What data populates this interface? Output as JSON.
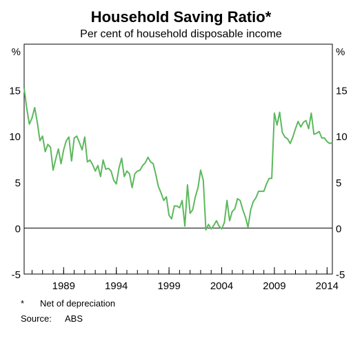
{
  "title": "Household Saving Ratio*",
  "subtitle": "Per cent of household disposable income",
  "footnote": {
    "marker": "*",
    "text": "Net of depreciation"
  },
  "source": {
    "label": "Source:",
    "text": "ABS"
  },
  "colors": {
    "line": "#5cb85c",
    "axis": "#000000",
    "zero_line": "#000000"
  },
  "chart_data": {
    "type": "line",
    "title": "Household Saving Ratio*",
    "subtitle": "Per cent of household disposable income",
    "ylabel_left": "%",
    "ylabel_right": "%",
    "xlim": [
      1985.25,
      2014.5
    ],
    "ylim": [
      -5,
      20
    ],
    "x_ticks": [
      1989,
      1994,
      1999,
      2004,
      2009,
      2014
    ],
    "y_ticks": [
      -5,
      0,
      5,
      10,
      15
    ],
    "grid": false,
    "legend": "none",
    "series": [
      {
        "values": [
          [
            1985.25,
            15.2
          ],
          [
            1985.5,
            13.0
          ],
          [
            1985.75,
            11.3
          ],
          [
            1986.0,
            12.0
          ],
          [
            1986.25,
            13.1
          ],
          [
            1986.5,
            11.5
          ],
          [
            1986.75,
            9.5
          ],
          [
            1987.0,
            10.0
          ],
          [
            1987.25,
            8.3
          ],
          [
            1987.5,
            9.1
          ],
          [
            1987.75,
            8.8
          ],
          [
            1988.0,
            6.3
          ],
          [
            1988.25,
            7.5
          ],
          [
            1988.5,
            8.6
          ],
          [
            1988.75,
            7.0
          ],
          [
            1989.0,
            8.5
          ],
          [
            1989.25,
            9.5
          ],
          [
            1989.5,
            9.9
          ],
          [
            1989.75,
            7.3
          ],
          [
            1990.0,
            9.8
          ],
          [
            1990.25,
            10.0
          ],
          [
            1990.5,
            9.3
          ],
          [
            1990.75,
            8.5
          ],
          [
            1991.0,
            9.9
          ],
          [
            1991.25,
            7.2
          ],
          [
            1991.5,
            7.4
          ],
          [
            1991.75,
            6.9
          ],
          [
            1992.0,
            6.2
          ],
          [
            1992.25,
            6.8
          ],
          [
            1992.5,
            5.6
          ],
          [
            1992.75,
            7.4
          ],
          [
            1993.0,
            6.4
          ],
          [
            1993.25,
            6.5
          ],
          [
            1993.5,
            6.2
          ],
          [
            1993.75,
            5.2
          ],
          [
            1994.0,
            4.8
          ],
          [
            1994.25,
            6.5
          ],
          [
            1994.5,
            7.6
          ],
          [
            1994.75,
            5.6
          ],
          [
            1995.0,
            6.2
          ],
          [
            1995.25,
            5.9
          ],
          [
            1995.5,
            4.4
          ],
          [
            1995.75,
            5.9
          ],
          [
            1996.0,
            6.2
          ],
          [
            1996.25,
            6.3
          ],
          [
            1996.5,
            6.8
          ],
          [
            1996.75,
            7.1
          ],
          [
            1997.0,
            7.7
          ],
          [
            1997.25,
            7.2
          ],
          [
            1997.5,
            7.0
          ],
          [
            1997.75,
            5.8
          ],
          [
            1998.0,
            4.5
          ],
          [
            1998.25,
            3.8
          ],
          [
            1998.5,
            3.0
          ],
          [
            1998.75,
            3.4
          ],
          [
            1999.0,
            1.4
          ],
          [
            1999.25,
            1.0
          ],
          [
            1999.5,
            2.4
          ],
          [
            1999.75,
            2.4
          ],
          [
            2000.0,
            2.2
          ],
          [
            2000.25,
            3.0
          ],
          [
            2000.5,
            0.2
          ],
          [
            2000.75,
            4.7
          ],
          [
            2001.0,
            1.6
          ],
          [
            2001.25,
            2.0
          ],
          [
            2001.5,
            3.4
          ],
          [
            2001.75,
            4.4
          ],
          [
            2002.0,
            6.3
          ],
          [
            2002.25,
            5.2
          ],
          [
            2002.5,
            -0.2
          ],
          [
            2002.75,
            0.4
          ],
          [
            2003.0,
            -0.1
          ],
          [
            2003.25,
            0.3
          ],
          [
            2003.5,
            0.8
          ],
          [
            2003.75,
            0.2
          ],
          [
            2004.0,
            -0.1
          ],
          [
            2004.25,
            0.6
          ],
          [
            2004.5,
            3.0
          ],
          [
            2004.75,
            0.8
          ],
          [
            2005.0,
            1.8
          ],
          [
            2005.25,
            2.1
          ],
          [
            2005.5,
            3.2
          ],
          [
            2005.75,
            3.0
          ],
          [
            2006.0,
            2.0
          ],
          [
            2006.25,
            1.2
          ],
          [
            2006.5,
            0.1
          ],
          [
            2006.75,
            2.0
          ],
          [
            2007.0,
            2.9
          ],
          [
            2007.25,
            3.3
          ],
          [
            2007.5,
            4.0
          ],
          [
            2007.75,
            4.0
          ],
          [
            2008.0,
            4.0
          ],
          [
            2008.25,
            4.8
          ],
          [
            2008.5,
            5.4
          ],
          [
            2008.75,
            5.4
          ],
          [
            2009.0,
            12.5
          ],
          [
            2009.25,
            11.2
          ],
          [
            2009.5,
            12.6
          ],
          [
            2009.75,
            10.4
          ],
          [
            2010.0,
            9.9
          ],
          [
            2010.25,
            9.7
          ],
          [
            2010.5,
            9.2
          ],
          [
            2010.75,
            9.9
          ],
          [
            2011.0,
            10.8
          ],
          [
            2011.25,
            11.6
          ],
          [
            2011.5,
            11.0
          ],
          [
            2011.75,
            11.5
          ],
          [
            2012.0,
            11.7
          ],
          [
            2012.25,
            10.8
          ],
          [
            2012.5,
            12.5
          ],
          [
            2012.75,
            10.2
          ],
          [
            2013.0,
            10.3
          ],
          [
            2013.25,
            10.5
          ],
          [
            2013.5,
            9.8
          ],
          [
            2013.75,
            9.8
          ],
          [
            2014.0,
            9.4
          ],
          [
            2014.25,
            9.2
          ],
          [
            2014.5,
            9.3
          ]
        ]
      }
    ]
  }
}
